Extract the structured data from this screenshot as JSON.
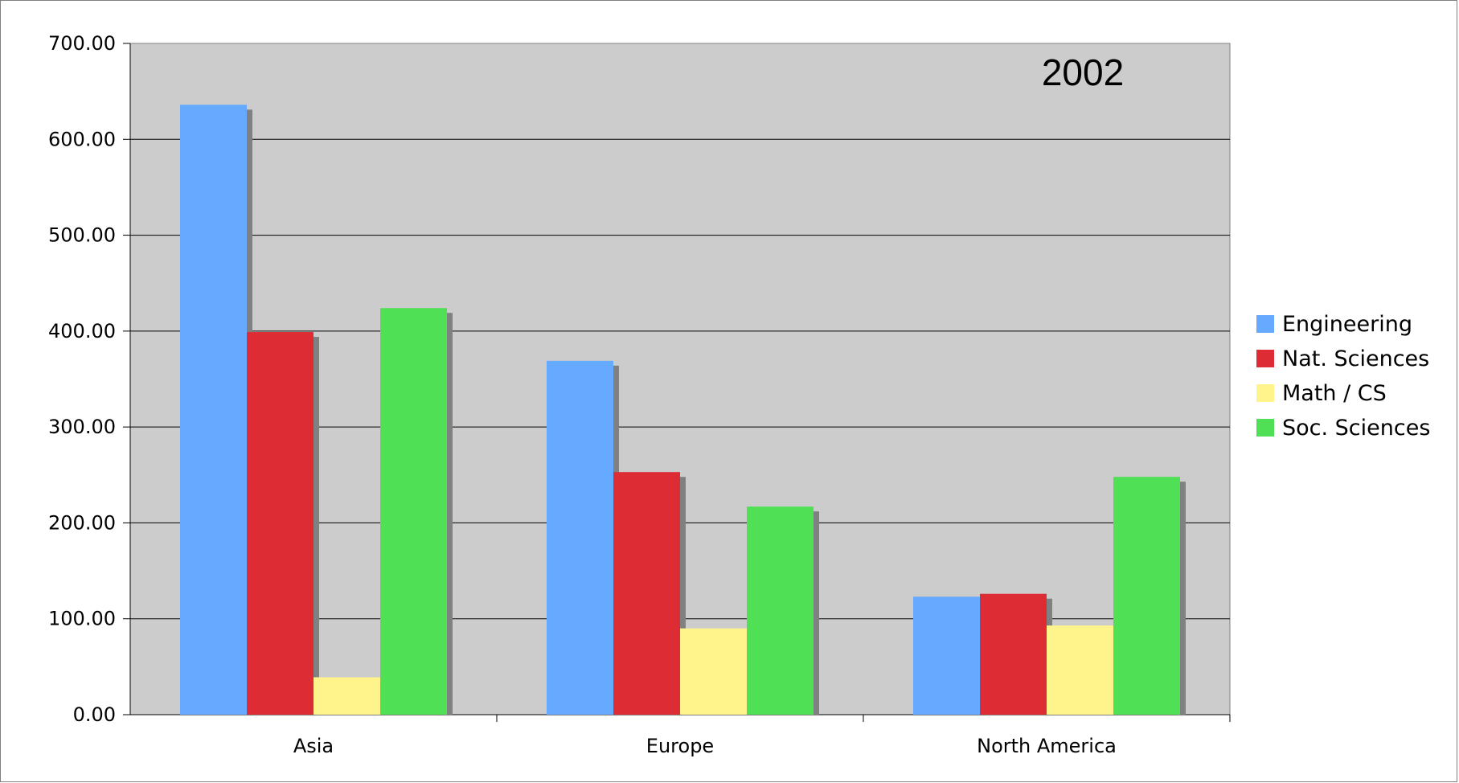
{
  "chart_data": {
    "type": "bar",
    "title": "2002",
    "xlabel": "",
    "ylabel": "",
    "categories": [
      "Asia",
      "Europe",
      "North America"
    ],
    "ylim": [
      0,
      700
    ],
    "y_ticks": [
      "0.00",
      "100.00",
      "200.00",
      "300.00",
      "400.00",
      "500.00",
      "600.00",
      "700.00"
    ],
    "grid": true,
    "legend_position": "right",
    "plot_background": "#cccccc",
    "series": [
      {
        "name": "Engineering",
        "color": "#66aaff",
        "values": [
          636,
          369,
          123
        ]
      },
      {
        "name": "Nat. Sciences",
        "color": "#dd2c33",
        "values": [
          399,
          253,
          126
        ]
      },
      {
        "name": "Math / CS",
        "color": "#fff38c",
        "values": [
          39,
          90,
          93
        ]
      },
      {
        "name": "Soc. Sciences",
        "color": "#4fe055",
        "values": [
          424,
          217,
          248
        ]
      }
    ]
  }
}
